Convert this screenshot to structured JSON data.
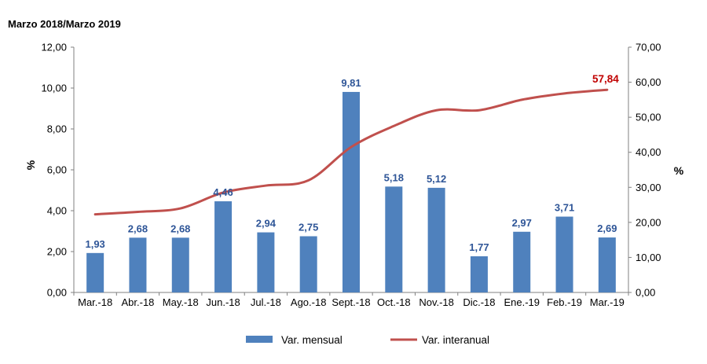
{
  "chart_data": {
    "type": "bar",
    "title": "Marzo 2018/Marzo 2019",
    "categories": [
      "Mar.-18",
      "Abr.-18",
      "May.-18",
      "Jun.-18",
      "Jul.-18",
      "Ago.-18",
      "Sept.-18",
      "Oct.-18",
      "Nov.-18",
      "Dic.-18",
      "Ene.-19",
      "Feb.-19",
      "Mar.-19"
    ],
    "series": [
      {
        "name": "Var. mensual",
        "type": "bar",
        "axis": "left",
        "color": "#4f81bd",
        "label_color": "#2e5597",
        "values": [
          1.93,
          2.68,
          2.68,
          4.46,
          2.94,
          2.75,
          9.81,
          5.18,
          5.12,
          1.77,
          2.97,
          3.71,
          2.69
        ],
        "labels": [
          "1,93",
          "2,68",
          "2,68",
          "4,46",
          "2,94",
          "2,75",
          "9,81",
          "5,18",
          "5,12",
          "1,77",
          "2,97",
          "3,71",
          "2,69"
        ]
      },
      {
        "name": "Var. interanual",
        "type": "line",
        "axis": "right",
        "color": "#c0504d",
        "label_color": "#c00000",
        "values": [
          22.3,
          23.0,
          24.0,
          28.5,
          30.5,
          32.0,
          41.5,
          47.5,
          52.0,
          52.0,
          55.0,
          56.8,
          57.84
        ],
        "end_label": "57,84"
      }
    ],
    "y_left": {
      "label": "%",
      "range": [
        0,
        12
      ],
      "ticks": [
        0,
        2,
        4,
        6,
        8,
        10,
        12
      ],
      "tick_labels": [
        "0,00",
        "2,00",
        "4,00",
        "6,00",
        "8,00",
        "10,00",
        "12,00"
      ]
    },
    "y_right": {
      "label": "%",
      "range": [
        0,
        70
      ],
      "ticks": [
        0,
        10,
        20,
        30,
        40,
        50,
        60,
        70
      ],
      "tick_labels": [
        "0,00",
        "10,00",
        "20,00",
        "30,00",
        "40,00",
        "50,00",
        "60,00",
        "70,00"
      ]
    },
    "grid": false,
    "legend": {
      "position": "bottom",
      "entries": [
        "Var. mensual",
        "Var. interanual"
      ]
    }
  }
}
